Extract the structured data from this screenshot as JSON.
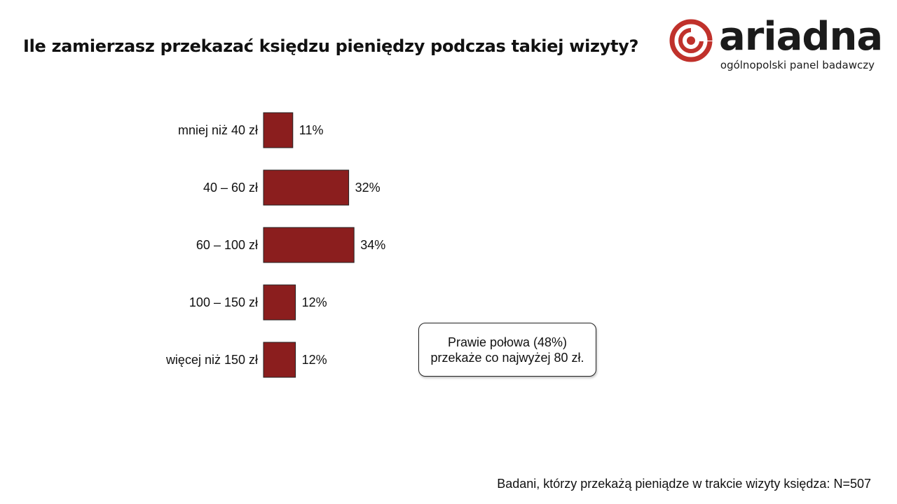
{
  "title": "Ile zamierzasz przekazać księdzu pieniędzy podczas takiej wizyty?",
  "logo": {
    "word": "ariadna",
    "tagline": "ogólnopolski panel badawczy",
    "brand_color": "#c0312b"
  },
  "callout": {
    "line1": "Prawie połowa (48%)",
    "line2": "przekaże co najwyżej 80 zł."
  },
  "footnote": "Badani, którzy przekażą pieniądze w trakcie wizyty księdza: N=507",
  "chart_data": {
    "type": "bar",
    "orientation": "horizontal",
    "categories": [
      "mniej niż 40 zł",
      "40 – 60 zł",
      "60 – 100 zł",
      "100 – 150 zł",
      "więcej niż 150 zł"
    ],
    "values": [
      11,
      32,
      34,
      12,
      12
    ],
    "value_labels": [
      "11%",
      "32%",
      "34%",
      "12%",
      "12%"
    ],
    "unit": "%",
    "bar_color": "#8b1e1e",
    "xlim": [
      0,
      100
    ],
    "grid": false,
    "legend": "none"
  }
}
